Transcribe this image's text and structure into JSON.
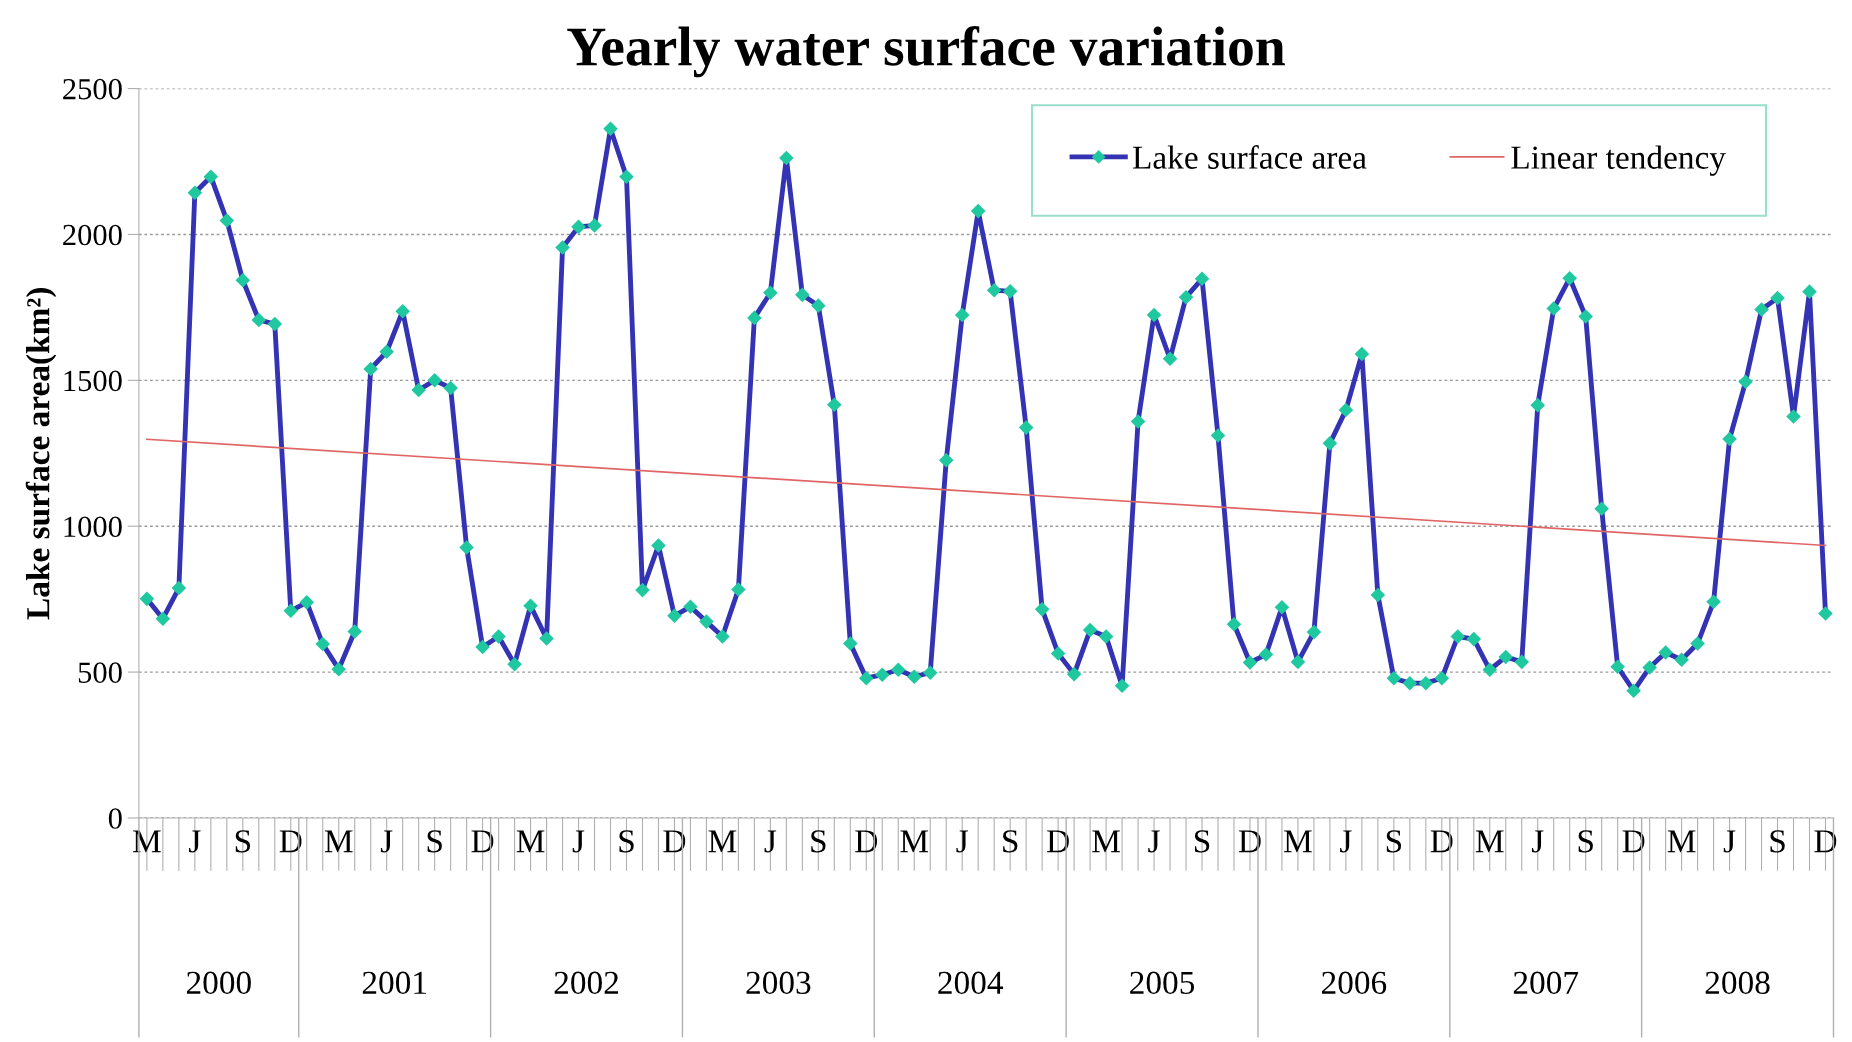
{
  "chart_data": {
    "type": "line",
    "title": "Yearly water surface variation",
    "ylabel": "Lake surface area(km²)",
    "categories": [
      "M",
      null,
      null,
      "J",
      null,
      null,
      "S",
      null,
      null,
      "D",
      null,
      null,
      "M",
      null,
      null,
      "J",
      null,
      null,
      "S",
      null,
      null,
      "D",
      null,
      null,
      "M",
      null,
      null,
      "J",
      null,
      null,
      "S",
      null,
      null,
      "D",
      null,
      null,
      "M",
      null,
      null,
      "J",
      null,
      null,
      "S",
      null,
      null,
      "D",
      null,
      null,
      "M",
      null,
      null,
      "J",
      null,
      null,
      "S",
      null,
      null,
      "D",
      null,
      null,
      "M",
      null,
      null,
      "J",
      null,
      null,
      "S",
      null,
      null,
      "D",
      null,
      null,
      "M",
      null,
      null,
      "J",
      null,
      null,
      "S",
      null,
      null,
      "D",
      null,
      null,
      "M",
      null,
      null,
      "J",
      null,
      null,
      "S",
      null,
      null,
      "D",
      null,
      null,
      "M",
      null,
      null,
      "J",
      null,
      null,
      "S",
      null,
      null,
      "D"
    ],
    "series": [
      {
        "name": "Lake surface area",
        "color": "#3333b3",
        "marker": "diamond",
        "colors": [
          "#20c8a0",
          "#20c8a0",
          "#20c8a0",
          "#20c8a0",
          "#20c8a0",
          "#20c8a0",
          "#20c8a0",
          "#20c8a0",
          "#20c8a0",
          "#20c8a0",
          "#20c8a0",
          "#20c8a0",
          "#20c8a0",
          "#20c8a0",
          "#20c8a0",
          "#20c8a0",
          "#20c8a0",
          "#20c8a0",
          "#20c8a0",
          "#20c8a0",
          "#20c8a0",
          "#20c8a0",
          "#20c8a0",
          "#20c8a0",
          "#20c8a0",
          "#20c8a0",
          "#20c8a0",
          "#20c8a0",
          "#20c8a0",
          "#20c8a0",
          "#20c8a0",
          "#20c8a0",
          "#20c8a0",
          "#20c8a0",
          "#20c8a0",
          "#20c8a0",
          "#20c8a0",
          "#20c8a0",
          "#20c8a0",
          "#20c8a0",
          "#20c8a0",
          "#20c8a0",
          "#20c8a0",
          "#20c8a0",
          "#20c8a0",
          "#20c8a0",
          "#20c8a0",
          "#20c8a0",
          "#20c8a0",
          "#20c8a0",
          "#20c8a0",
          "#20c8a0",
          "#20c8a0",
          "#20c8a0",
          "#20c8a0",
          "#20c8a0",
          "#20c8a0",
          "#20c8a0",
          "#20c8a0",
          "#20c8a0",
          "#20c8a0",
          "#20c8a0",
          "#20c8a0",
          "#20c8a0",
          "#20c8a0",
          "#20c8a0",
          "#20c8a0",
          "#20c8a0",
          "#20c8a0",
          "#20c8a0",
          "#20c8a0",
          "#20c8a0",
          "#20c8a0",
          "#20c8a0",
          "#20c8a0",
          "#20c8a0",
          "#20c8a0",
          "#20c8a0",
          "#20c8a0",
          "#20c8a0",
          "#20c8a0",
          "#20c8a0",
          "#20c8a0",
          "#20c8a0",
          "#20c8a0",
          "#20c8a0",
          "#20c8a0",
          "#20c8a0",
          "#20c8a0",
          "#20c8a0",
          "#20c8a0",
          "#20c8a0",
          "#20c8a0",
          "#20c8a0",
          "#20c8a0",
          "#20c8a0",
          "#20c8a0",
          "#20c8a0",
          "#20c8a0",
          "#20c8a0",
          "#20c8a0",
          "#20c8a0",
          "#20c8a0",
          "#20c8a0",
          "#20c8a0",
          "#20c8a0"
        ],
        "values": [
          751,
          683,
          788,
          2143,
          2198,
          2048,
          1843,
          1707,
          1693,
          710,
          739,
          596,
          510,
          639,
          1539,
          1598,
          1737,
          1467,
          1500,
          1474,
          927,
          586,
          622,
          527,
          727,
          615,
          1955,
          2026,
          2031,
          2362,
          2198,
          781,
          934,
          693,
          724,
          673,
          622,
          783,
          1714,
          1800,
          2262,
          1793,
          1756,
          1416,
          598,
          479,
          491,
          508,
          484,
          498,
          1226,
          1724,
          2080,
          1809,
          1805,
          1338,
          715,
          564,
          493,
          644,
          622,
          453,
          1359,
          1724,
          1574,
          1785,
          1848,
          1311,
          664,
          533,
          560,
          722,
          535,
          637,
          1284,
          1398,
          1590,
          764,
          479,
          462,
          462,
          479,
          622,
          613,
          508,
          552,
          535,
          1415,
          1746,
          1850,
          1719,
          1060,
          518,
          436,
          516,
          567,
          542,
          598,
          741,
          1299,
          1495,
          1743,
          1782,
          1376,
          1804,
          701
        ]
      },
      {
        "name": "Linear tendency",
        "color": "#e06666",
        "marker": "none",
        "values": [
          1298,
          null,
          null,
          null,
          null,
          null,
          null,
          null,
          null,
          null,
          null,
          null,
          null,
          null,
          null,
          null,
          null,
          null,
          null,
          null,
          null,
          null,
          null,
          null,
          null,
          null,
          null,
          null,
          null,
          null,
          null,
          null,
          null,
          null,
          null,
          null,
          null,
          null,
          null,
          null,
          null,
          null,
          null,
          null,
          null,
          null,
          null,
          null,
          null,
          null,
          null,
          null,
          null,
          null,
          null,
          null,
          null,
          null,
          null,
          null,
          null,
          null,
          null,
          null,
          null,
          null,
          null,
          null,
          null,
          null,
          null,
          null,
          null,
          null,
          null,
          null,
          null,
          null,
          null,
          null,
          null,
          null,
          null,
          null,
          null,
          null,
          null,
          null,
          null,
          null,
          null,
          null,
          null,
          null,
          null,
          null,
          null,
          null,
          null,
          null,
          null,
          null,
          null,
          null,
          null,
          934
        ]
      }
    ],
    "ylim": [
      0,
      2500
    ],
    "yticks": [
      0,
      500,
      1000,
      1500,
      2000,
      2500
    ],
    "grid": "y",
    "legend": "top right",
    "annotations": [
      "2000",
      "2001",
      "2002",
      "2003",
      "2004",
      "2005",
      "2006",
      "2007",
      "2008"
    ]
  }
}
